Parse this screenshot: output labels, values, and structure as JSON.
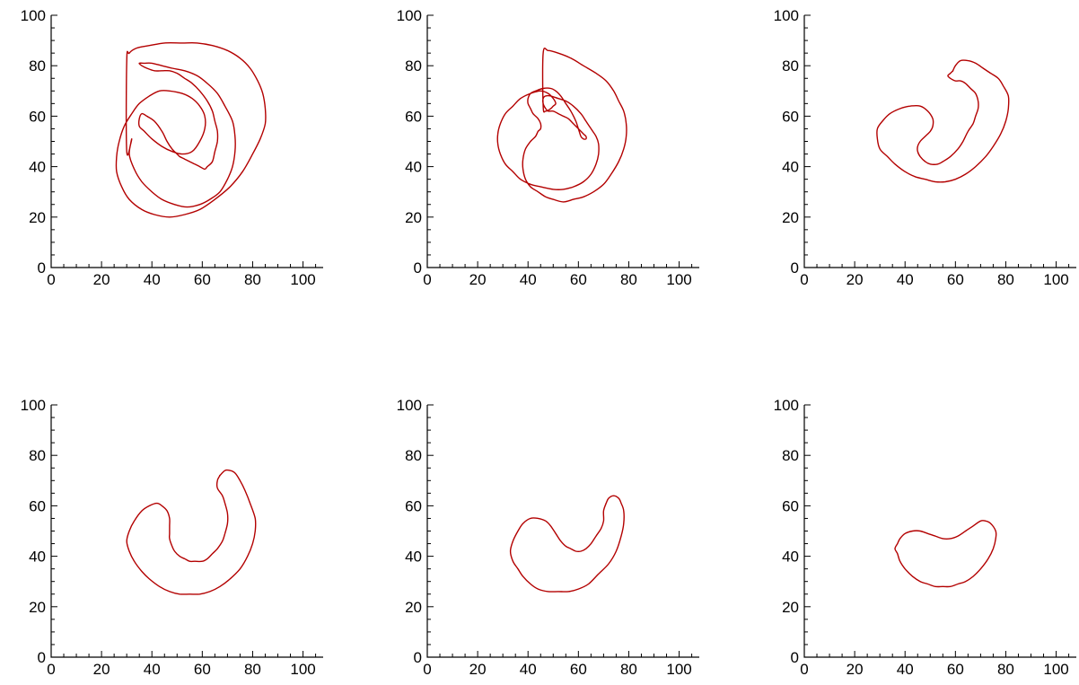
{
  "colors": {
    "curve": "#b30000",
    "axis": "#000000"
  },
  "chart_data": [
    {
      "type": "line",
      "title": "",
      "xlabel": "",
      "ylabel": "",
      "xlim": [
        0,
        108
      ],
      "ylim": [
        0,
        100
      ],
      "xticks": [
        0,
        20,
        40,
        60,
        80,
        100
      ],
      "yticks": [
        0,
        20,
        40,
        60,
        80,
        100
      ],
      "grid": false,
      "closed": true,
      "series": [
        {
          "x": [
            30,
            31,
            34,
            39,
            45,
            52,
            58,
            64,
            70,
            75,
            79,
            82,
            84,
            85,
            85,
            83,
            80,
            76,
            71,
            65,
            59,
            53,
            47,
            41,
            36,
            31,
            28,
            26,
            26,
            27,
            29,
            32,
            35,
            39,
            43,
            47,
            52,
            56,
            59,
            61,
            61,
            59,
            56,
            52,
            48,
            44,
            40,
            37,
            35,
            35,
            36,
            38,
            41,
            44,
            46,
            48,
            50,
            51,
            53,
            55,
            57,
            59,
            61,
            62,
            64,
            65,
            66,
            66,
            65,
            64,
            62,
            59,
            56,
            53,
            50,
            47,
            44,
            41,
            38,
            36,
            35,
            37,
            40,
            44,
            48,
            53,
            58,
            62,
            66,
            69,
            72,
            73,
            73,
            72,
            70,
            67,
            63,
            59,
            54,
            49,
            44,
            40,
            36,
            33,
            31,
            32,
            30
          ],
          "y": [
            82,
            85,
            87,
            88,
            89,
            89,
            89,
            88,
            86,
            83,
            79,
            74,
            69,
            63,
            57,
            51,
            45,
            38,
            32,
            27,
            23,
            21,
            20,
            21,
            23,
            27,
            32,
            38,
            44,
            50,
            56,
            61,
            65,
            68,
            70,
            70,
            69,
            67,
            64,
            60,
            55,
            50,
            46,
            45,
            46,
            48,
            51,
            54,
            56,
            59,
            61,
            60,
            58,
            54,
            50,
            47,
            45,
            44,
            43,
            42,
            41,
            40,
            39,
            40,
            42,
            46,
            50,
            54,
            58,
            62,
            66,
            70,
            73,
            75,
            77,
            78,
            78,
            78,
            79,
            80,
            81,
            81,
            81,
            80,
            79,
            78,
            76,
            73,
            69,
            64,
            58,
            52,
            46,
            40,
            35,
            30,
            27,
            25,
            24,
            25,
            27,
            30,
            34,
            39,
            45,
            51,
            46
          ]
        }
      ]
    },
    {
      "type": "line",
      "title": "",
      "xlabel": "",
      "ylabel": "",
      "xlim": [
        0,
        108
      ],
      "ylim": [
        0,
        100
      ],
      "xticks": [
        0,
        20,
        40,
        60,
        80,
        100
      ],
      "yticks": [
        0,
        20,
        40,
        60,
        80,
        100
      ],
      "grid": false,
      "closed": true,
      "series": [
        {
          "x": [
            46,
            48,
            52,
            57,
            62,
            67,
            71,
            74,
            76,
            78,
            79,
            79,
            78,
            76,
            73,
            70,
            66,
            62,
            58,
            54,
            50,
            47,
            44,
            41,
            39,
            38,
            38,
            39,
            41,
            43,
            44,
            45,
            45,
            44,
            42,
            41,
            40,
            40,
            41,
            43,
            46,
            49,
            51,
            53,
            55,
            57,
            59,
            60,
            61,
            62,
            63,
            63,
            62,
            60,
            58,
            56,
            54,
            52,
            50,
            48,
            47,
            46,
            46,
            47,
            49,
            52,
            55,
            58,
            61,
            63,
            65,
            67,
            68,
            68,
            67,
            65,
            62,
            58,
            54,
            50,
            45,
            41,
            37,
            34,
            31,
            29,
            28,
            28,
            29,
            31,
            34,
            37,
            41,
            45,
            48,
            50,
            51,
            50,
            49,
            47,
            46
          ],
          "y": [
            85,
            86,
            85,
            83,
            80,
            77,
            74,
            70,
            66,
            62,
            57,
            52,
            47,
            42,
            37,
            33,
            30,
            28,
            27,
            26,
            27,
            28,
            30,
            32,
            35,
            39,
            43,
            47,
            50,
            52,
            54,
            55,
            57,
            59,
            61,
            63,
            65,
            67,
            69,
            70,
            71,
            71,
            70,
            68,
            65,
            62,
            58,
            55,
            52,
            51,
            51,
            52,
            53,
            55,
            57,
            59,
            60,
            61,
            62,
            62,
            63,
            65,
            67,
            68,
            68,
            67,
            66,
            64,
            61,
            58,
            55,
            52,
            49,
            45,
            41,
            37,
            34,
            32,
            31,
            31,
            32,
            33,
            35,
            38,
            41,
            45,
            49,
            53,
            57,
            61,
            64,
            67,
            69,
            70,
            69,
            67,
            65,
            64,
            63,
            62,
            64
          ]
        }
      ]
    },
    {
      "type": "line",
      "title": "",
      "xlabel": "",
      "ylabel": "",
      "xlim": [
        0,
        108
      ],
      "ylim": [
        0,
        100
      ],
      "xticks": [
        0,
        20,
        40,
        60,
        80,
        100
      ],
      "yticks": [
        0,
        20,
        40,
        60,
        80,
        100
      ],
      "grid": false,
      "closed": true,
      "series": [
        {
          "x": [
            59,
            60,
            62,
            65,
            68,
            71,
            74,
            77,
            79,
            81,
            81,
            80,
            78,
            75,
            72,
            68,
            64,
            60,
            56,
            52,
            48,
            44,
            40,
            36,
            33,
            30,
            29,
            29,
            31,
            34,
            38,
            42,
            46,
            49,
            51,
            51,
            50,
            48,
            46,
            45,
            45,
            46,
            48,
            50,
            53,
            55,
            58,
            61,
            63,
            65,
            67,
            68,
            69,
            69,
            68,
            66,
            64,
            62,
            60,
            58,
            57,
            58,
            59
          ],
          "y": [
            78,
            80,
            82,
            82,
            81,
            79,
            77,
            75,
            72,
            68,
            63,
            58,
            53,
            48,
            44,
            40,
            37,
            35,
            34,
            34,
            35,
            36,
            38,
            41,
            44,
            47,
            51,
            55,
            58,
            61,
            63,
            64,
            64,
            62,
            59,
            56,
            54,
            52,
            50,
            48,
            46,
            44,
            42,
            41,
            41,
            42,
            44,
            47,
            50,
            54,
            57,
            60,
            63,
            66,
            69,
            71,
            73,
            74,
            74,
            75,
            76,
            77,
            78
          ]
        }
      ]
    },
    {
      "type": "line",
      "title": "",
      "xlabel": "",
      "ylabel": "",
      "xlim": [
        0,
        108
      ],
      "ylim": [
        0,
        100
      ],
      "xticks": [
        0,
        20,
        40,
        60,
        80,
        100
      ],
      "yticks": [
        0,
        20,
        40,
        60,
        80,
        100
      ],
      "grid": false,
      "closed": true,
      "series": [
        {
          "x": [
            67,
            69,
            71,
            73,
            75,
            77,
            79,
            81,
            81,
            80,
            78,
            75,
            71,
            67,
            63,
            59,
            55,
            51,
            47,
            43,
            39,
            36,
            33,
            31,
            30,
            31,
            33,
            36,
            39,
            42,
            44,
            46,
            47,
            47,
            47,
            47,
            48,
            49,
            51,
            53,
            55,
            57,
            60,
            62,
            64,
            66,
            68,
            69,
            70,
            70,
            69,
            68,
            66,
            66,
            67
          ],
          "y": [
            72,
            74,
            74,
            73,
            70,
            66,
            61,
            55,
            50,
            45,
            40,
            35,
            31,
            28,
            26,
            25,
            25,
            25,
            26,
            28,
            31,
            34,
            38,
            42,
            46,
            50,
            54,
            58,
            60,
            61,
            60,
            58,
            55,
            52,
            49,
            47,
            44,
            42,
            40,
            39,
            38,
            38,
            38,
            39,
            41,
            43,
            46,
            49,
            53,
            57,
            61,
            64,
            67,
            70,
            72
          ]
        }
      ]
    },
    {
      "type": "line",
      "title": "",
      "xlabel": "",
      "ylabel": "",
      "xlim": [
        0,
        108
      ],
      "ylim": [
        0,
        100
      ],
      "xticks": [
        0,
        20,
        40,
        60,
        80,
        100
      ],
      "yticks": [
        0,
        20,
        40,
        60,
        80,
        100
      ],
      "grid": false,
      "closed": true,
      "series": [
        {
          "x": [
            71,
            72,
            74,
            76,
            77,
            78,
            78,
            77,
            75,
            72,
            68,
            64,
            60,
            56,
            52,
            48,
            44,
            41,
            38,
            36,
            34,
            33,
            34,
            36,
            38,
            41,
            44,
            47,
            49,
            51,
            53,
            55,
            57,
            59,
            61,
            63,
            65,
            67,
            69,
            70,
            70,
            71
          ],
          "y": [
            61,
            63,
            64,
            63,
            61,
            58,
            53,
            48,
            42,
            37,
            33,
            29,
            27,
            26,
            26,
            26,
            27,
            29,
            32,
            35,
            38,
            42,
            46,
            50,
            53,
            55,
            55,
            54,
            52,
            49,
            46,
            44,
            43,
            42,
            42,
            43,
            45,
            48,
            51,
            54,
            58,
            61
          ]
        }
      ]
    },
    {
      "type": "line",
      "title": "",
      "xlabel": "",
      "ylabel": "",
      "xlim": [
        0,
        108
      ],
      "ylim": [
        0,
        100
      ],
      "xticks": [
        0,
        20,
        40,
        60,
        80,
        100
      ],
      "yticks": [
        0,
        20,
        40,
        60,
        80,
        100
      ],
      "grid": false,
      "closed": true,
      "series": [
        {
          "x": [
            37,
            38,
            40,
            43,
            46,
            49,
            52,
            55,
            58,
            61,
            64,
            67,
            70,
            72,
            74,
            76,
            76,
            75,
            73,
            70,
            67,
            64,
            61,
            58,
            55,
            52,
            49,
            46,
            43,
            40,
            38,
            37,
            36,
            37
          ],
          "y": [
            45,
            47,
            49,
            50,
            50,
            49,
            48,
            47,
            47,
            48,
            50,
            52,
            54,
            54,
            53,
            50,
            47,
            43,
            39,
            35,
            32,
            30,
            29,
            28,
            28,
            28,
            29,
            30,
            32,
            35,
            38,
            41,
            43,
            45
          ]
        }
      ]
    }
  ]
}
